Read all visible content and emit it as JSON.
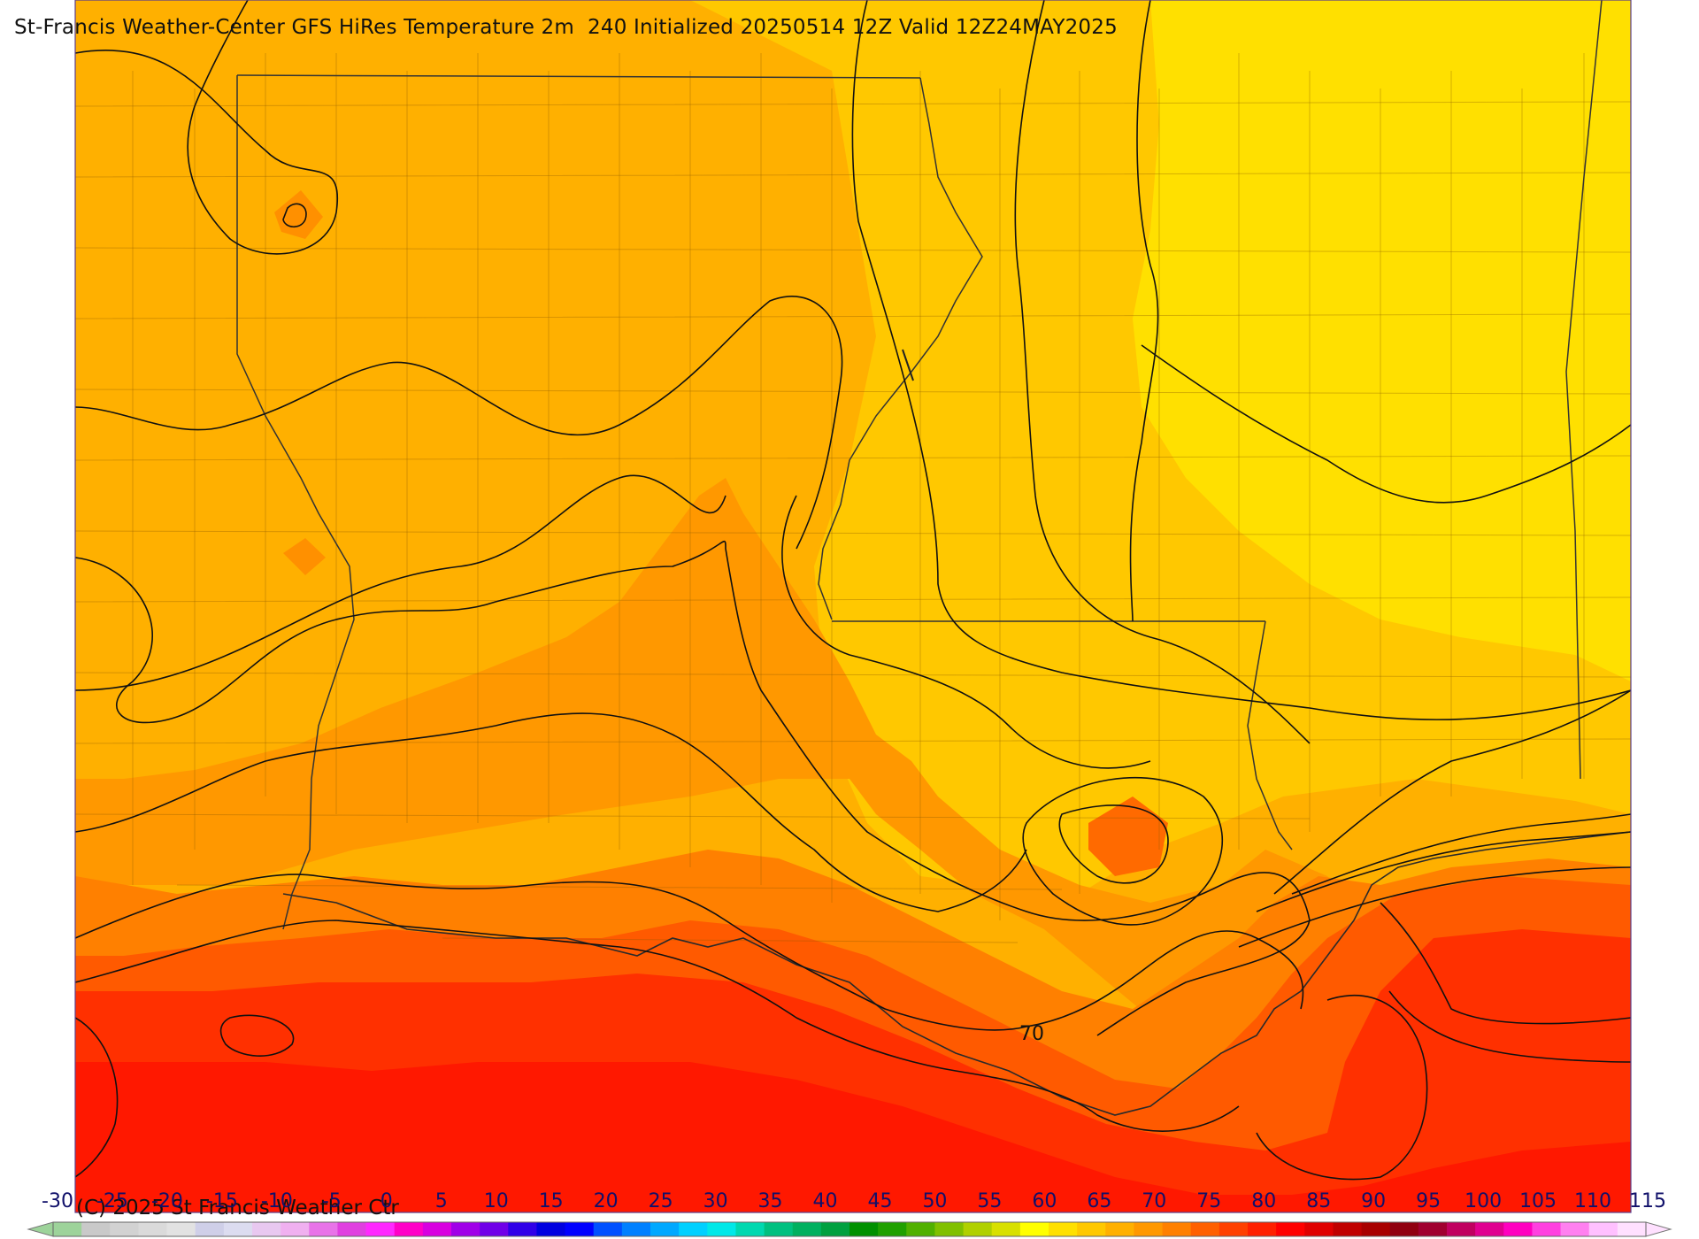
{
  "title": "St-Francis Weather-Center GFS HiRes Temperature 2m  240 Initialized 20250514 12Z Valid 12Z24MAY2025",
  "copyright": "(C) 2025 St Francis Weather Ctr",
  "contour_label": "70",
  "legend": {
    "ticks": [
      "-30",
      "-25",
      "-20",
      "-15",
      "-10",
      "-5",
      "0",
      "5",
      "10",
      "15",
      "20",
      "25",
      "30",
      "35",
      "40",
      "45",
      "50",
      "55",
      "60",
      "65",
      "70",
      "75",
      "80",
      "85",
      "90",
      "95",
      "100",
      "105",
      "110",
      "115"
    ],
    "colors": [
      "#9dd39a",
      "#c9c9c9",
      "#d2d2d2",
      "#dadada",
      "#e2e2e2",
      "#cfcfe8",
      "#dcdcf0",
      "#e8c8f0",
      "#f0b0f0",
      "#e873e8",
      "#e040e0",
      "#ff28ff",
      "#ff00c8",
      "#d800e0",
      "#a000e8",
      "#7000e8",
      "#3000e8",
      "#0000e0",
      "#0000ff",
      "#0050ff",
      "#0080ff",
      "#00a8ff",
      "#00d0ff",
      "#00e8e8",
      "#00d8b0",
      "#00c080",
      "#00b060",
      "#00a040",
      "#009000",
      "#20a000",
      "#50b000",
      "#80c000",
      "#b0d000",
      "#d8e000",
      "#ffff00",
      "#ffe000",
      "#ffc800",
      "#ffb000",
      "#ff9800",
      "#ff8000",
      "#ff6000",
      "#ff4000",
      "#ff2000",
      "#ff0000",
      "#e00000",
      "#c00000",
      "#a80000",
      "#900010",
      "#a00030",
      "#c00060",
      "#e00090",
      "#ff00c0",
      "#ff40e0",
      "#ff80f0",
      "#ffc0ff",
      "#ffe0ff"
    ]
  },
  "fill_colors": {
    "yellow": "#ffe000",
    "gold": "#ffc800",
    "light_orange": "#ffb000",
    "orange": "#ff9800",
    "dark_orange": "#ff8000",
    "red_orange": "#ff5a00",
    "red": "#ff3000",
    "deep_red": "#ff1800"
  }
}
